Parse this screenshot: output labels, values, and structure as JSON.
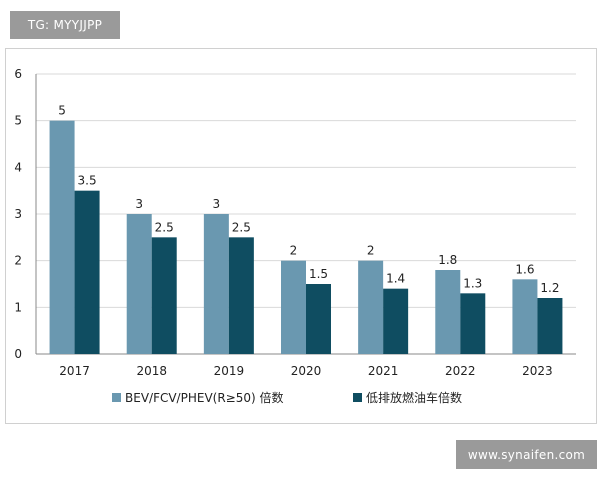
{
  "watermark_top": "TG: MYYJJPP",
  "watermark_bottom": "www.synaifen.com",
  "colors": {
    "series1": "#6a98b0",
    "series2": "#0f4d61",
    "grid": "#d9d9d9",
    "axis": "#888888",
    "text": "#222222"
  },
  "chart_data": {
    "type": "bar",
    "title": "",
    "xlabel": "",
    "ylabel": "",
    "ylim": [
      0,
      6
    ],
    "yticks": [
      "0",
      "1",
      "2",
      "3",
      "4",
      "5",
      "6"
    ],
    "categories": [
      "2017",
      "2018",
      "2019",
      "2020",
      "2021",
      "2022",
      "2023"
    ],
    "series": [
      {
        "name": "BEV/FCV/PHEV(R≥50) 倍数",
        "values": [
          5,
          3,
          3,
          2,
          2,
          1.8,
          1.6
        ],
        "labels": [
          "5",
          "3",
          "3",
          "2",
          "2",
          "1.8",
          "1.6"
        ]
      },
      {
        "name": "低排放燃油车倍数",
        "values": [
          3.5,
          2.5,
          2.5,
          1.5,
          1.4,
          1.3,
          1.2
        ],
        "labels": [
          "3.5",
          "2.5",
          "2.5",
          "1.5",
          "1.4",
          "1.3",
          "1.2"
        ]
      }
    ],
    "legend_position": "bottom"
  }
}
